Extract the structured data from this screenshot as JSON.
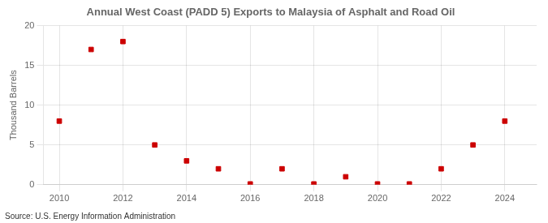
{
  "chart_data": {
    "type": "scatter",
    "title": "Annual West Coast (PADD 5) Exports to Malaysia of Asphalt and Road Oil",
    "ylabel": "Thousand Barrels",
    "source": "Source: U.S. Energy Information Administration",
    "x": [
      2010,
      2011,
      2012,
      2013,
      2014,
      2015,
      2016,
      2017,
      2018,
      2019,
      2020,
      2021,
      2022,
      2023,
      2024
    ],
    "values": [
      8,
      17,
      18,
      5,
      3,
      2,
      0.1,
      2,
      0.1,
      1,
      0.1,
      0.1,
      2,
      5,
      8
    ],
    "color": "#cc0000",
    "marker": "square",
    "xlim": [
      2009.5,
      2025
    ],
    "xticks": [
      2010,
      2012,
      2014,
      2016,
      2018,
      2020,
      2022,
      2024
    ],
    "ylim": [
      0,
      20
    ],
    "yticks": [
      0,
      5,
      10,
      15,
      20
    ],
    "grid": true
  }
}
